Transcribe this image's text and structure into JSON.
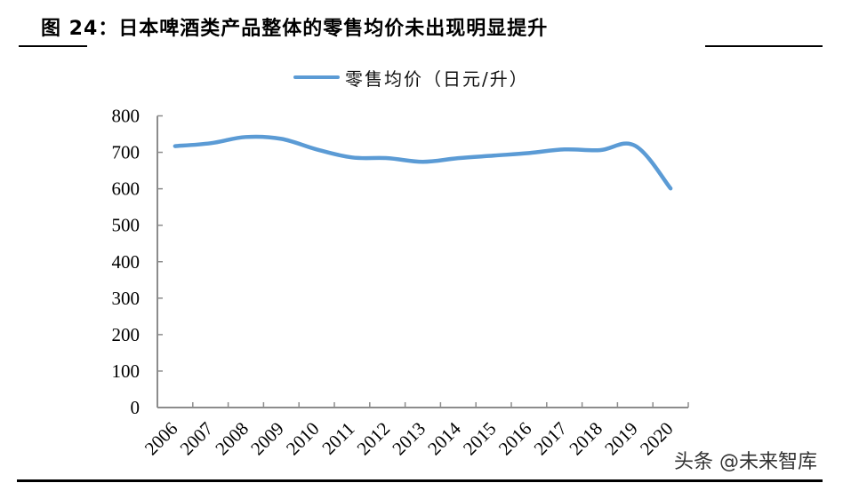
{
  "header": {
    "title": "图 24：日本啤酒类产品整体的零售均价未出现明显提升"
  },
  "watermark": "头条 @未来智库",
  "chart_data": {
    "type": "line",
    "title": "图 24：日本啤酒类产品整体的零售均价未出现明显提升",
    "xlabel": "",
    "ylabel": "",
    "ylim": [
      0,
      800
    ],
    "yticks": [
      0,
      100,
      200,
      300,
      400,
      500,
      600,
      700,
      800
    ],
    "grid": false,
    "legend_position": "top",
    "categories": [
      "2006",
      "2007",
      "2008",
      "2009",
      "2010",
      "2011",
      "2012",
      "2013",
      "2014",
      "2015",
      "2016",
      "2017",
      "2018",
      "2019",
      "2020"
    ],
    "series": [
      {
        "name": "零售均价（日元/升）",
        "color": "#5b9bd5",
        "values": [
          717,
          725,
          742,
          737,
          708,
          686,
          684,
          674,
          684,
          691,
          698,
          708,
          706,
          718,
          601
        ]
      }
    ]
  }
}
